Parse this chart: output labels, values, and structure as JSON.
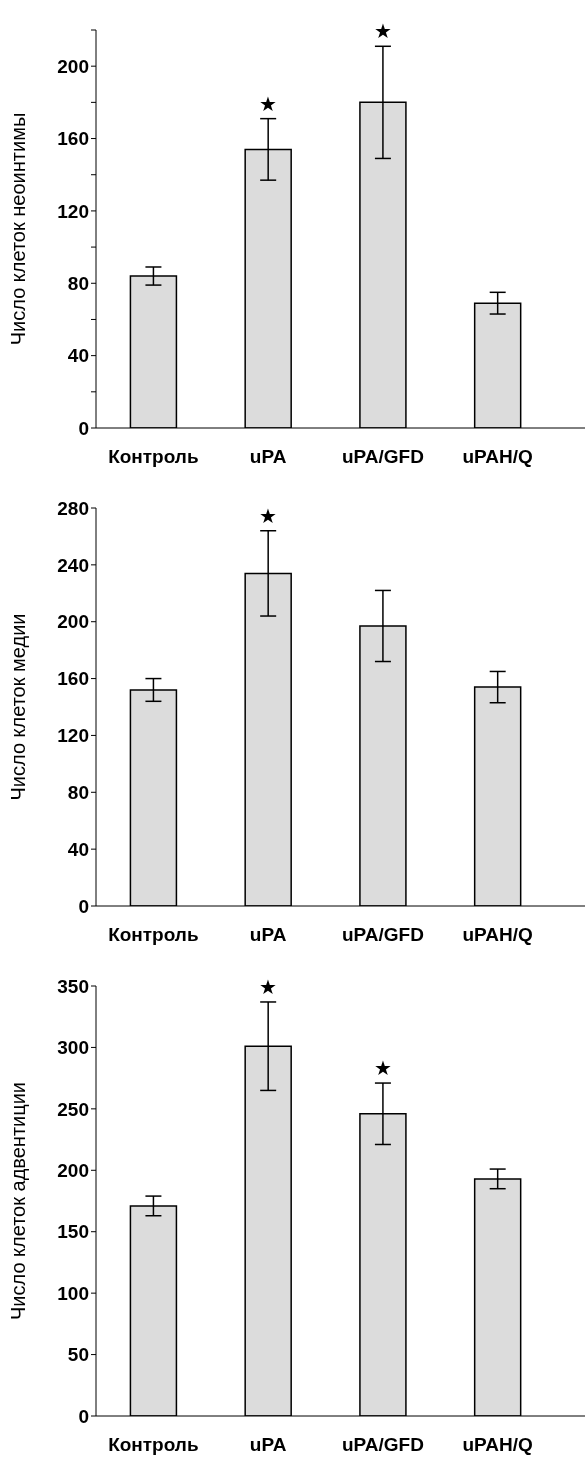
{
  "chart_data": [
    {
      "type": "bar",
      "ylabel": "Число клеток неоинтимы",
      "categories": [
        "Контроль",
        "uPA",
        "uPA/GFD",
        "uPAH/Q"
      ],
      "values": [
        84,
        154,
        180,
        69
      ],
      "errors": [
        5,
        17,
        31,
        6
      ],
      "value_labels": [
        null,
        "★",
        "★",
        null
      ],
      "color": "#dcdcdc",
      "ylim": [
        0,
        220
      ],
      "yticks": [
        0,
        {
          "value": 20,
          "label": null
        },
        40,
        {
          "value": 60,
          "label": null
        },
        80,
        {
          "value": 100,
          "label": null
        },
        120,
        {
          "value": 140,
          "label": null
        },
        160,
        {
          "value": 180,
          "label": null
        },
        200,
        {
          "value": 220,
          "label": null
        }
      ]
    },
    {
      "type": "bar",
      "ylabel": "Число клеток медии",
      "categories": [
        "Контроль",
        "uPA",
        "uPA/GFD",
        "uPAH/Q"
      ],
      "values": [
        152,
        234,
        197,
        154
      ],
      "errors": [
        8,
        30,
        25,
        11
      ],
      "value_labels": [
        null,
        "★",
        null,
        null
      ],
      "color": "#dcdcdc",
      "ylim": [
        0,
        280
      ],
      "yticks": [
        0,
        40,
        80,
        120,
        160,
        200,
        240,
        280
      ]
    },
    {
      "type": "bar",
      "ylabel": "Число клеток адвентиции",
      "categories": [
        "Контроль",
        "uPA",
        "uPA/GFD",
        "uPAH/Q"
      ],
      "values": [
        171,
        301,
        246,
        193
      ],
      "errors": [
        8,
        36,
        25,
        8
      ],
      "value_labels": [
        null,
        "★",
        "★",
        null
      ],
      "color": "#dcdcdc",
      "ylim": [
        0,
        350
      ],
      "yticks": [
        0,
        50,
        100,
        150,
        200,
        250,
        300,
        350
      ]
    }
  ]
}
